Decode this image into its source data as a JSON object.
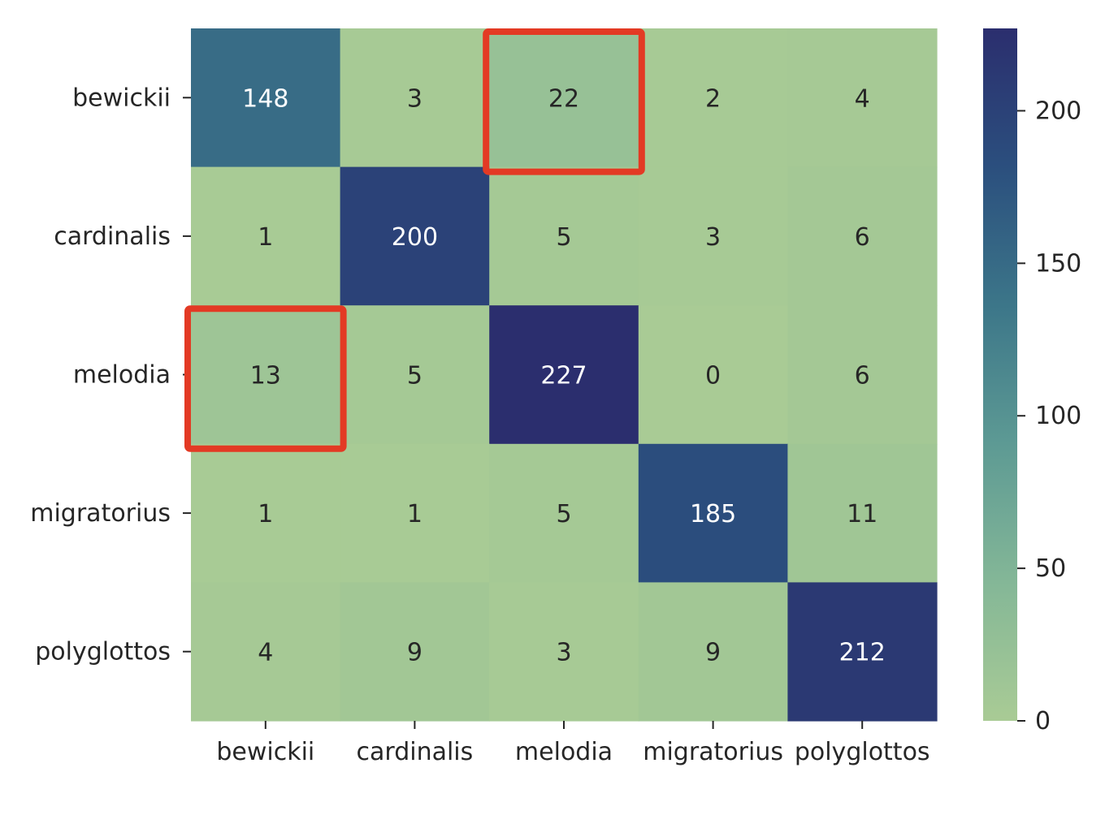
{
  "chart_data": {
    "type": "heatmap",
    "title": "",
    "xlabel": "",
    "ylabel": "",
    "x_categories": [
      "bewickii",
      "cardinalis",
      "melodia",
      "migratorius",
      "polyglottos"
    ],
    "y_categories": [
      "bewickii",
      "cardinalis",
      "melodia",
      "migratorius",
      "polyglottos"
    ],
    "values": [
      [
        148,
        3,
        22,
        2,
        4
      ],
      [
        1,
        200,
        5,
        3,
        6
      ],
      [
        13,
        5,
        227,
        0,
        6
      ],
      [
        1,
        1,
        5,
        185,
        11
      ],
      [
        4,
        9,
        3,
        9,
        212
      ]
    ],
    "colorbar": {
      "min": 0,
      "max": 227,
      "ticks": [
        0,
        50,
        100,
        150,
        200
      ],
      "colors": [
        "#a9cb95",
        "#84b797",
        "#5d9a94",
        "#3c7689",
        "#2b4f7e",
        "#2b2e6e"
      ]
    },
    "highlighted_cells": [
      {
        "row": 0,
        "col": 2
      },
      {
        "row": 2,
        "col": 0
      }
    ],
    "highlight_color": "#e33a24"
  }
}
